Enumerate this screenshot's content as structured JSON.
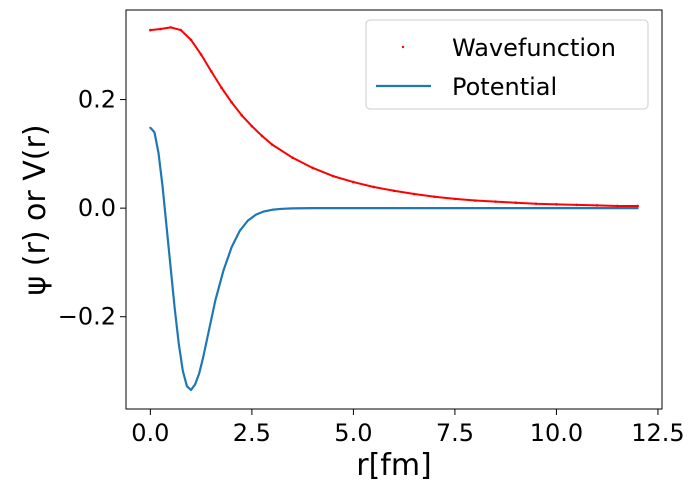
{
  "chart_data": {
    "type": "line",
    "title": "",
    "xlabel": "r[fm]",
    "ylabel": "ψ (r) or V(r)",
    "xlim": [
      -0.6,
      12.6
    ],
    "ylim": [
      -0.37,
      0.365
    ],
    "xticks": [
      0.0,
      2.5,
      5.0,
      7.5,
      10.0,
      12.5
    ],
    "xtick_labels": [
      "0.0",
      "2.5",
      "5.0",
      "7.5",
      "10.0",
      "12.5"
    ],
    "yticks": [
      -0.2,
      0.0,
      0.2
    ],
    "ytick_labels": [
      "−0.2",
      "0.0",
      "0.2"
    ],
    "grid": false,
    "legend_position": "top-right",
    "series": [
      {
        "name": "Wavefunction",
        "style": "points",
        "color": "#ff0000",
        "x": [
          0.0,
          0.25,
          0.5,
          0.75,
          1.0,
          1.25,
          1.5,
          1.75,
          2.0,
          2.25,
          2.5,
          2.75,
          3.0,
          3.5,
          4.0,
          4.5,
          5.0,
          5.5,
          6.0,
          6.5,
          7.0,
          7.5,
          8.0,
          8.5,
          9.0,
          9.5,
          10.0,
          10.5,
          11.0,
          11.5,
          12.0
        ],
        "y": [
          0.328,
          0.33,
          0.333,
          0.328,
          0.31,
          0.283,
          0.252,
          0.222,
          0.195,
          0.171,
          0.151,
          0.133,
          0.117,
          0.093,
          0.074,
          0.059,
          0.048,
          0.039,
          0.032,
          0.026,
          0.021,
          0.017,
          0.014,
          0.012,
          0.01,
          0.008,
          0.007,
          0.006,
          0.005,
          0.004,
          0.004
        ]
      },
      {
        "name": "Potential",
        "style": "line",
        "color": "#1f77b4",
        "x": [
          0.0,
          0.1,
          0.2,
          0.3,
          0.4,
          0.5,
          0.6,
          0.7,
          0.8,
          0.9,
          1.0,
          1.1,
          1.2,
          1.3,
          1.4,
          1.5,
          1.6,
          1.8,
          2.0,
          2.2,
          2.4,
          2.6,
          2.8,
          3.0,
          3.2,
          3.5,
          4.0,
          5.0,
          6.0,
          8.0,
          10.0,
          12.0
        ],
        "y": [
          0.148,
          0.14,
          0.102,
          0.04,
          -0.035,
          -0.11,
          -0.185,
          -0.25,
          -0.3,
          -0.328,
          -0.335,
          -0.325,
          -0.305,
          -0.275,
          -0.24,
          -0.205,
          -0.17,
          -0.115,
          -0.072,
          -0.042,
          -0.023,
          -0.012,
          -0.006,
          -0.003,
          -0.0015,
          -0.0005,
          0.0,
          0.0,
          0.0,
          0.0,
          0.0,
          0.0
        ]
      }
    ]
  }
}
